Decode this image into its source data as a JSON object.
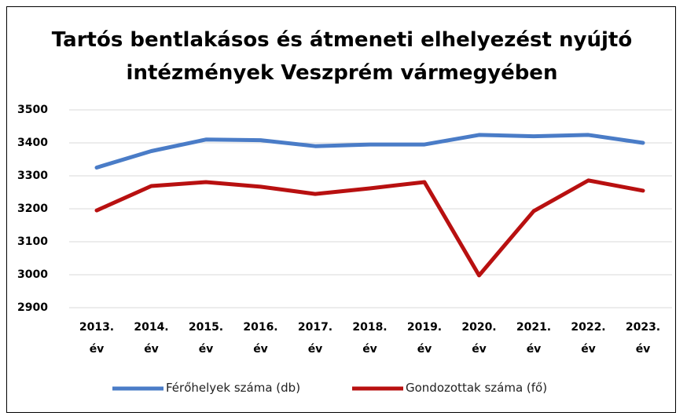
{
  "chart_data": {
    "type": "line",
    "title": "Tartós bentlakásos és átmeneti elhelyezést nyújtó intézmények Veszprém vármegyében",
    "categories": [
      "2013. év",
      "2014. év",
      "2015. év",
      "2016. év",
      "2017. év",
      "2018. év",
      "2019. év",
      "2020. év",
      "2021. év",
      "2022. év",
      "2023. év"
    ],
    "series": [
      {
        "name": "Férőhelyek száma (db)",
        "color": "#4a7cc7",
        "values": [
          3325,
          3375,
          3410,
          3408,
          3390,
          3395,
          3395,
          3424,
          3420,
          3424,
          3400
        ]
      },
      {
        "name": "Gondozottak száma (fő)",
        "color": "#b81010",
        "values": [
          3195,
          3269,
          3281,
          3267,
          3245,
          3262,
          3281,
          2998,
          3193,
          3286,
          3255
        ]
      }
    ],
    "ylim": [
      2900,
      3500
    ],
    "yticks": [
      2900,
      3000,
      3100,
      3200,
      3300,
      3400,
      3500
    ],
    "grid": true,
    "legend": "bottom"
  }
}
